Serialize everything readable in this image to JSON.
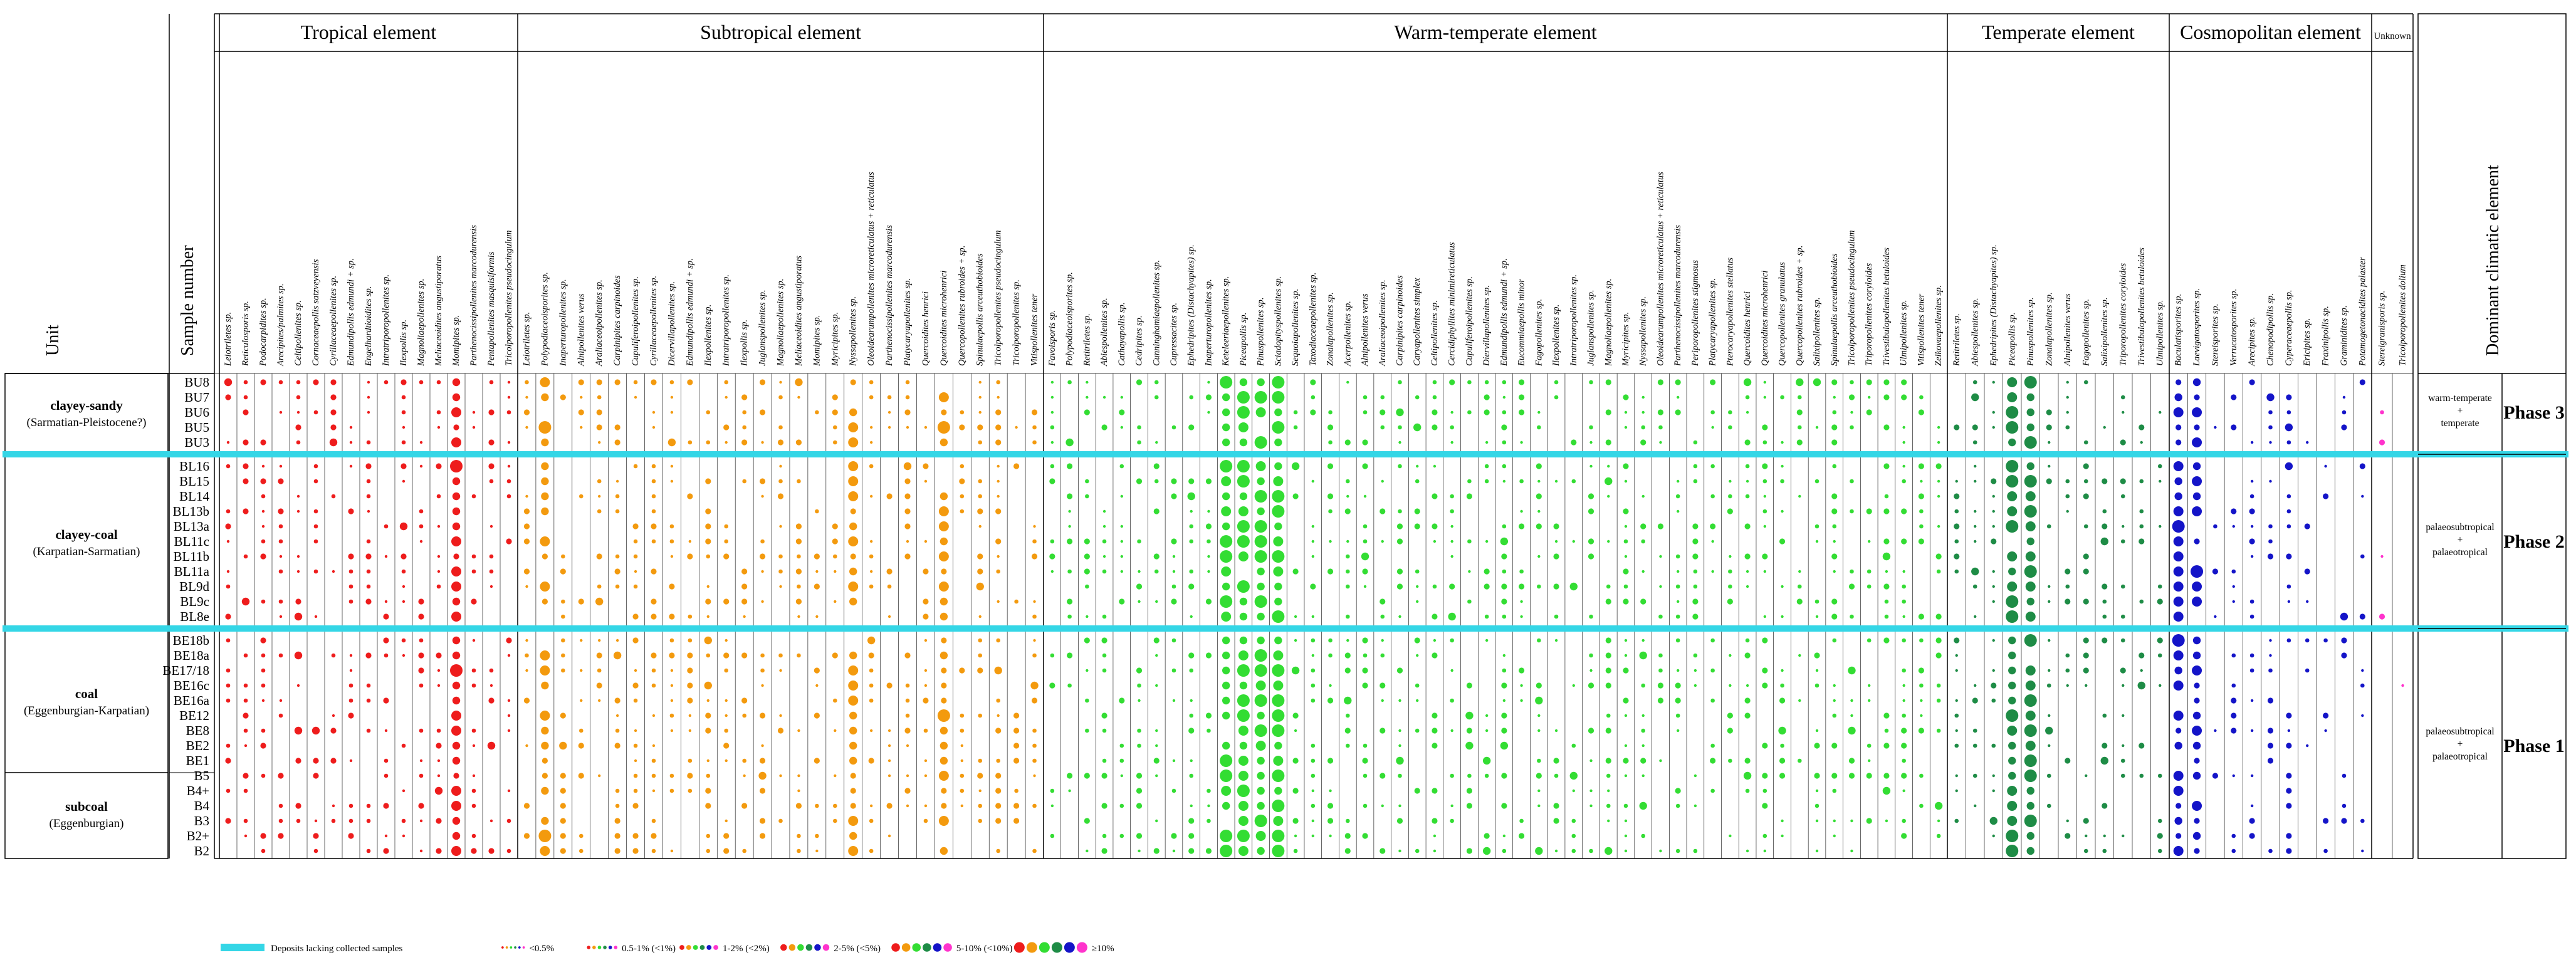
{
  "chart_data": {
    "type": "dot-matrix",
    "title": "",
    "headers": {
      "unit": "Unit",
      "sample_number": "Sample number",
      "dominant": "Dominant climatic element",
      "unknown": "Unknown"
    },
    "abundance_classes": [
      "<0.5%",
      "0.5-1% (<1%)",
      "1-2% (<2%)",
      "2-5% (<5%)",
      "5-10% (<10%)",
      "≥10%"
    ],
    "legend": {
      "deposits": "Deposits lacking collected samples"
    },
    "colors": {
      "Tropical": "#ee1c1c",
      "Subtropical": "#f39a0e",
      "Warm-temperate": "#33dd33",
      "Temperate": "#1e8c46",
      "Cosmopolitan": "#1414c8",
      "Unknown": "#ff33cc",
      "gap": "#34d6e6"
    },
    "groups": [
      {
        "name": "Tropical element",
        "key": "Tropical",
        "taxa": [
          "Leiotriletes sp.",
          "Reticulosporis sp.",
          "Podocarpidites sp.",
          "Arecipites/palmites sp.",
          "Celtipollenites sp.",
          "Cornaceaepollis satzveyensis",
          "Cyrillaceaepollenites sp.",
          "Edmundipollis edmundi + sp.",
          "Engelhardtioidites sp.",
          "Intratriporopollenites sp.",
          "Ilexpollis sp.",
          "Magnoliaepollenites sp.",
          "Meliaceoidites angustiporatus",
          "Momipites sp.",
          "Parthenocissipollenites marcodurensis",
          "Pentapollenites masquisiformis",
          "Tricolporopollenites pseudocingulum"
        ]
      },
      {
        "name": "Subtropical element",
        "key": "Subtropical",
        "taxa": [
          "Leiotriletes sp.",
          "Polypodiaceoisporites sp.",
          "Inaperturopollenites sp.",
          "Alnipollenites verus",
          "Araliaceoipollenites sp.",
          "Carpinipites carpinoides",
          "Cupuliferoipollenites sp.",
          "Cyrillaceaepollenites sp.",
          "Dicervillapollenites sp.",
          "Edmundipollis edmundi + sp.",
          "Ilexpollenites sp.",
          "Intratriporopollenites sp.",
          "Ilexpollis sp.",
          "Juglanspollenites sp.",
          "Magnoliaepollenites sp.",
          "Meliaceoidites angustiporatus",
          "Momipites sp.",
          "Myricipites sp.",
          "Nyssapollenites sp.",
          "Oleoidearumpollenites microreticulatus + reticulatus",
          "Parthenocissipollenites marcodurensis",
          "Platycaryapollenites sp.",
          "Quercoidites henrici",
          "Quercoidites microhenrici",
          "Quercopollenites rubroides + sp.",
          "Spinulaepollis arceuthobioides",
          "Tricolporopollenites pseudocingulum",
          "Tricolporopollenites sp.",
          "Vitispollenites tener"
        ]
      },
      {
        "name": "Warm-temperate element",
        "key": "Warm-temperate",
        "taxa": [
          "Favoisporis sp.",
          "Polypodiaceoisporites sp.",
          "Retitriletes sp.",
          "Abiespollenites sp.",
          "Cathayapollis sp.",
          "Cedripites sp.",
          "Cunninghamiaepollenites sp.",
          "Cupressacites sp.",
          "Ephedripites (Distachyapites) sp.",
          "Inaperturopollenites sp.",
          "Keteleeriaepollenites sp.",
          "Piceapollis sp.",
          "Pinuspollenites sp.",
          "Sciadopityspollenites sp.",
          "Sequoiapollenites sp.",
          "Taxodiaceaepollenites sp.",
          "Zonalapollenites sp.",
          "Acerpollenites sp.",
          "Alnipollenites verus",
          "Araliaceoipollenites sp.",
          "Carpinipites carpinoides",
          "Caryapollenites simplex",
          "Celtipollenites sp.",
          "Cercidiphyllites minimireticulatus",
          "Cupuliferoipollenites sp.",
          "Diervillapollenites sp.",
          "Edmundipollis edmundi + sp.",
          "Eucommiaepollis minor",
          "Fagopollenites sp.",
          "Ilexpollenites sp.",
          "Intratriporopollenites sp.",
          "Juglanspollenites sp.",
          "Magnoliaepollenites sp.",
          "Myricipites sp.",
          "Nyssapollenites sp.",
          "Oleoidearumpollenites microreticulatus + reticulatus",
          "Parthenocissipollenites marcodurensis",
          "Periporopollenites stigmosus",
          "Platycaryapollenites sp.",
          "Pterocaryapollenites stellatus",
          "Quercoidites henrici",
          "Quercoidites microhenrici",
          "Quercopollenites granulatus",
          "Quercopollenites rubroides + sp.",
          "Salixipollenites sp.",
          "Spinulaepollis arceuthobioides",
          "Tricolporopollenites pseudocingulum",
          "Triporopollenites coryloides",
          "Trivestibulopollenites betuloides",
          "Ulmipollenites sp.",
          "Vitispollenites tener",
          "Zelkovaepollenites sp."
        ]
      },
      {
        "name": "Temperate element",
        "key": "Temperate",
        "taxa": [
          "Retitriletes sp.",
          "Abiespollenites sp.",
          "Ephedripites (Distachyapites) sp.",
          "Piceapollis sp.",
          "Pinuspollenites sp.",
          "Zonalapollenites sp.",
          "Alnipollenites verus",
          "Fagopollenites sp.",
          "Salixipollenites sp.",
          "Triporopollenites coryloides",
          "Trivestibulopollenites betuloides",
          "Ulmipollenites sp."
        ]
      },
      {
        "name": "Cosmopolitan element",
        "key": "Cosmopolitan",
        "taxa": [
          "Baculatisporites sp.",
          "Laevigatosporites sp.",
          "Stereisporites sp.",
          "Verrucatosporites sp.",
          "Arecipites sp.",
          "Chenopodipollis sp.",
          "Cyperaceaepollis sp.",
          "Ericipites sp.",
          "Fraxinipollis sp.",
          "Graminidites sp.",
          "Potamogetonacidites palaster"
        ]
      },
      {
        "name": "Unknown",
        "key": "Unknown",
        "taxa": [
          "Stereigranisporis sp.",
          "Tricolporopollenites dolium"
        ]
      }
    ],
    "units": [
      {
        "name": "clayey-sandy",
        "age": "(Sarmatian-Pleistocene?)",
        "samples": [
          "BU8",
          "BU7",
          "BU6",
          "BU5",
          "BU3"
        ]
      },
      {
        "name": "clayey-coal",
        "age": "(Karpatian-Sarmatian)",
        "samples": [
          "BL16",
          "BL15",
          "BL14",
          "BL13b",
          "BL13a",
          "BL11c",
          "BL11b",
          "BL11a",
          "BL9d",
          "BL9c",
          "BL8e"
        ]
      },
      {
        "name": "coal",
        "age": "(Eggenburgian-Karpatian)",
        "samples": [
          "BE18b",
          "BE18a",
          "BE17/18",
          "BE16c",
          "BE16a",
          "BE12",
          "BE8",
          "BE2",
          "BE1"
        ]
      },
      {
        "name": "subcoal",
        "age": "(Eggenburgian)",
        "samples": [
          "B5",
          "B4+",
          "B4",
          "B3",
          "B2+",
          "B2"
        ]
      }
    ],
    "phases": [
      {
        "label": "Phase 3",
        "climate": [
          "warm-temperate",
          "+",
          "temperate"
        ]
      },
      {
        "label": "Phase 2",
        "climate": [
          "palaeosubtropical",
          "+",
          "palaeotropical"
        ]
      },
      {
        "label": "Phase 1",
        "climate": [
          "palaeosubtropical",
          "+",
          "palaeotropical"
        ]
      }
    ]
  }
}
